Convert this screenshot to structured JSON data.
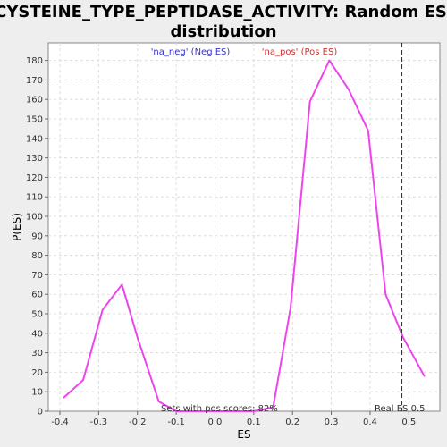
{
  "chart_data": {
    "type": "line",
    "title_line1": "CYSTEINE_TYPE_PEPTIDASE_ACTIVITY: Random ES",
    "title_line2": "distribution",
    "xlabel": "ES",
    "ylabel": "P(ES)",
    "xlim": [
      -0.43,
      0.58
    ],
    "ylim": [
      0,
      189
    ],
    "x_ticks": [
      -0.4,
      -0.3,
      -0.2,
      -0.1,
      0.0,
      0.1,
      0.2,
      0.3,
      0.4,
      0.5
    ],
    "x_tick_labels": [
      "-0.4",
      "-0.3",
      "-0.2",
      "-0.1",
      "0.0",
      "0.1",
      "0.2",
      "0.3",
      "0.4",
      "0.5"
    ],
    "y_ticks": [
      0,
      10,
      20,
      30,
      40,
      50,
      60,
      70,
      80,
      90,
      100,
      110,
      120,
      130,
      140,
      150,
      160,
      170,
      180
    ],
    "grid": true,
    "legend": [
      {
        "label": "'na_neg' (Neg ES)",
        "color": "#3333cc"
      },
      {
        "label": "'na_pos' (Pos ES)",
        "color": "#cc3333"
      }
    ],
    "series": [
      {
        "color": "#ee44ee",
        "x": [
          -0.39,
          -0.34,
          -0.29,
          -0.24,
          -0.2,
          -0.145,
          -0.1,
          -0.05,
          0.0,
          0.05,
          0.1,
          0.15,
          0.195,
          0.245,
          0.295,
          0.345,
          0.395,
          0.44,
          0.485,
          0.54
        ],
        "y": [
          7,
          16,
          52,
          65,
          38,
          5,
          0,
          0,
          0,
          0,
          0,
          2,
          53,
          159,
          180,
          165,
          144,
          60,
          38,
          18
        ]
      }
    ],
    "reference_line": {
      "x": 0.481,
      "label": "Real ES 0.5"
    },
    "annotation": "Sets with pos scores: 82%"
  }
}
